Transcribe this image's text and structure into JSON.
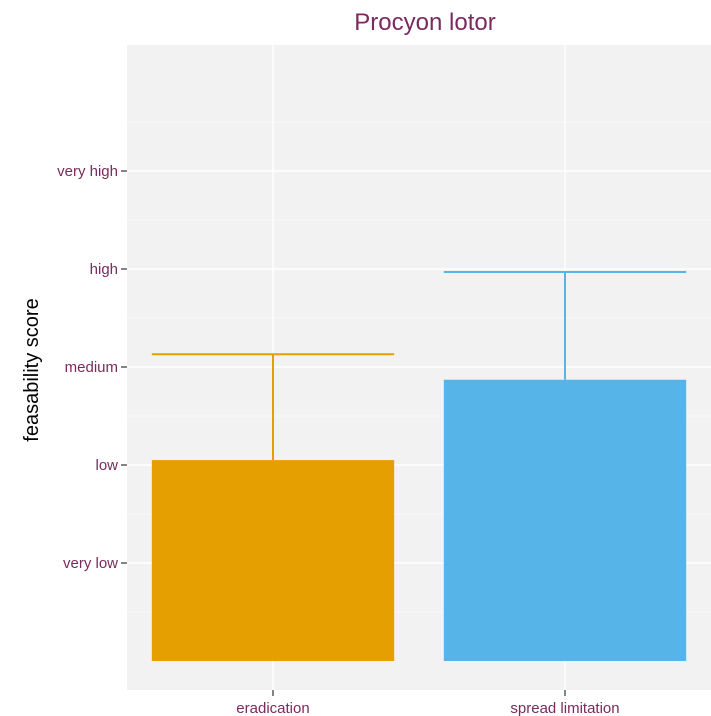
{
  "chart_data": {
    "type": "bar",
    "title": "Procyon lotor",
    "ylabel": "feasability score",
    "xlabel": "",
    "categories": [
      "eradication",
      "spread limitation"
    ],
    "y_tick_labels": [
      "very low",
      "low",
      "medium",
      "high",
      "very high"
    ],
    "y_tick_values": [
      1,
      2,
      3,
      4,
      5
    ],
    "ylim": [
      0,
      5.9
    ],
    "values": [
      2.05,
      2.87
    ],
    "error_upper": [
      3.13,
      3.97
    ],
    "colors": {
      "bars": [
        "#E69F00",
        "#56B4E9"
      ],
      "text_accent": "#7B2A5E",
      "panel": "#F2F2F2",
      "grid": "#FFFFFF"
    },
    "grid": true,
    "legend": "none"
  }
}
